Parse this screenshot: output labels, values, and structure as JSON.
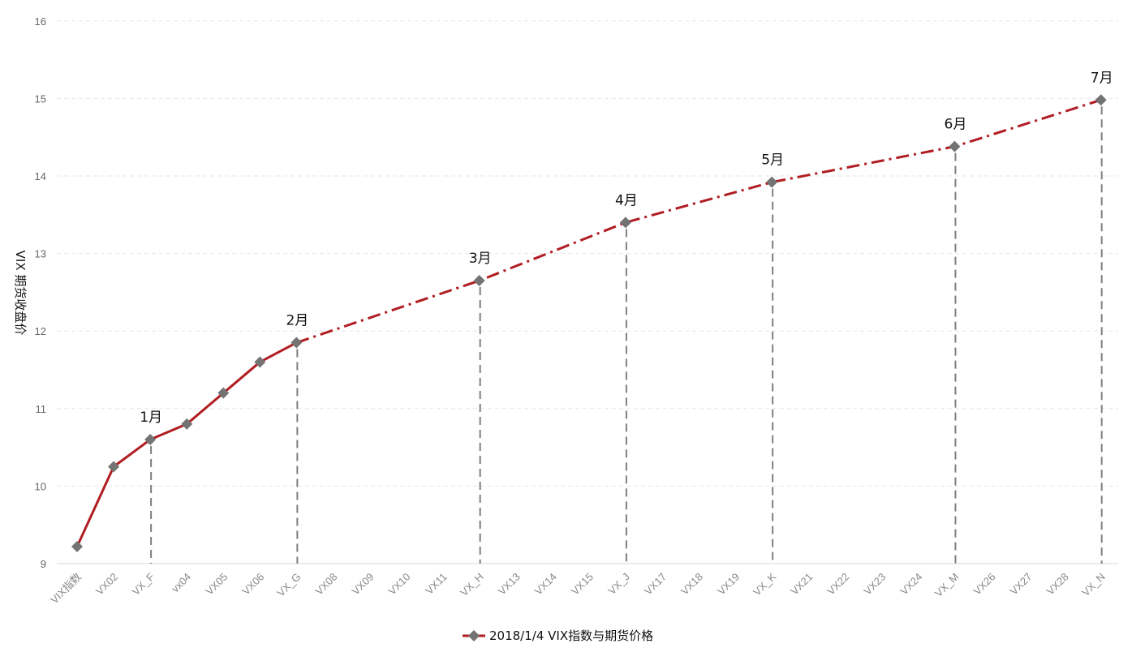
{
  "chart_data": {
    "type": "line",
    "title": "",
    "xlabel": "",
    "ylabel": "VIX 期货收盘价",
    "ylim": [
      9,
      16
    ],
    "yticks": [
      9,
      10,
      11,
      12,
      13,
      14,
      15,
      16
    ],
    "grid": true,
    "legend": {
      "position": "bottom-center",
      "label": "2018/1/4 VIX指数与期货价格"
    },
    "categories": [
      "VIX指数",
      "VX02",
      "VX_F",
      "vx04",
      "VX05",
      "VX06",
      "VX_G",
      "VX08",
      "VX09",
      "VX10",
      "VX11",
      "VX_H",
      "VX13",
      "VX14",
      "VX15",
      "VX_J",
      "VX17",
      "VX18",
      "VX19",
      "VX_K",
      "VX21",
      "VX22",
      "VX23",
      "VX24",
      "VX_M",
      "VX26",
      "VX27",
      "VX28",
      "VX_N"
    ],
    "series": [
      {
        "name": "2018/1/4 VIX指数与期货价格",
        "points": [
          {
            "category": "VIX指数",
            "value": 9.22
          },
          {
            "category": "VX02",
            "value": 10.25
          },
          {
            "category": "VX_F",
            "value": 10.6
          },
          {
            "category": "vx04",
            "value": 10.8
          },
          {
            "category": "VX05",
            "value": 11.2
          },
          {
            "category": "VX06",
            "value": 11.6
          },
          {
            "category": "VX_G",
            "value": 11.85
          },
          {
            "category": "VX_H",
            "value": 12.65
          },
          {
            "category": "VX_J",
            "value": 13.4
          },
          {
            "category": "VX_K",
            "value": 13.92
          },
          {
            "category": "VX_M",
            "value": 14.38
          },
          {
            "category": "VX_N",
            "value": 14.98
          }
        ],
        "solid_through": "VX_G",
        "color": "#b01d22",
        "marker_color": "#737373"
      }
    ],
    "annotations": [
      {
        "category": "VX_F",
        "text": "1月"
      },
      {
        "category": "VX_G",
        "text": "2月"
      },
      {
        "category": "VX_H",
        "text": "3月"
      },
      {
        "category": "VX_J",
        "text": "4月"
      },
      {
        "category": "VX_K",
        "text": "5月"
      },
      {
        "category": "VX_M",
        "text": "6月"
      },
      {
        "category": "VX_N",
        "text": "7月"
      }
    ]
  }
}
